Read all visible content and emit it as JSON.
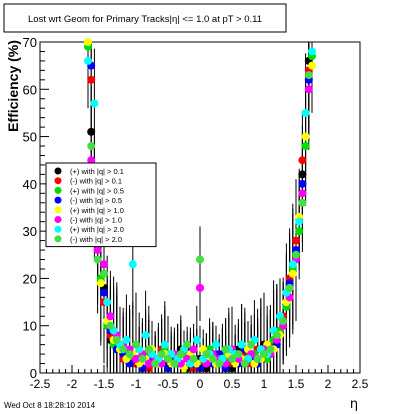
{
  "chart_data": {
    "type": "scatter",
    "title": "Lost wrt Geom for Primary Tracks|η| <= 1.0 at pT > 0.11",
    "xlabel": "η",
    "ylabel": "Efficiency (%)",
    "xlim": [
      -2.5,
      2.5
    ],
    "ylim": [
      0,
      70
    ],
    "x_ticks": [
      -2.5,
      -2,
      -1.5,
      -1,
      -0.5,
      0,
      0.5,
      1,
      1.5,
      2,
      2.5
    ],
    "y_ticks": [
      0,
      10,
      20,
      30,
      40,
      50,
      60,
      70
    ],
    "legend_position": "left",
    "series": [
      {
        "name": "(+) with |q| > 0.1",
        "color": "#000000",
        "x": [
          -1.7,
          -1.6,
          -1.5,
          -1.4,
          -1.3,
          -1.2,
          -1.1,
          -1.0,
          -0.9,
          -0.8,
          -0.7,
          -0.6,
          -0.5,
          -0.4,
          -0.3,
          -0.2,
          -0.1,
          0.0,
          0.1,
          0.2,
          0.3,
          0.4,
          0.5,
          0.6,
          0.7,
          0.8,
          0.9,
          1.0,
          1.1,
          1.2,
          1.3,
          1.4,
          1.5,
          1.6,
          1.7
        ],
        "y": [
          51,
          28,
          18,
          7,
          5,
          4,
          3,
          2,
          1,
          2,
          3,
          4,
          2,
          3,
          5,
          1,
          2,
          3,
          1,
          4,
          2,
          3,
          1,
          5,
          2,
          4,
          2,
          6,
          5,
          7,
          10,
          18,
          25,
          42,
          66
        ]
      },
      {
        "name": "(-) with |q| > 0.1",
        "color": "#ff0000",
        "x": [
          -1.7,
          -1.6,
          -1.5,
          -1.4,
          -1.3,
          -1.2,
          -1.1,
          -1.0,
          -0.9,
          -0.8,
          -0.7,
          -0.6,
          -0.5,
          -0.4,
          -0.3,
          -0.2,
          -0.1,
          0.0,
          0.1,
          0.2,
          0.3,
          0.4,
          0.5,
          0.6,
          0.7,
          0.8,
          0.9,
          1.0,
          1.1,
          1.2,
          1.3,
          1.4,
          1.5,
          1.6,
          1.7
        ],
        "y": [
          62,
          30,
          15,
          8,
          6,
          3,
          4,
          2,
          3,
          1,
          2,
          5,
          3,
          2,
          4,
          3,
          1,
          2,
          4,
          2,
          3,
          5,
          2,
          3,
          4,
          2,
          5,
          3,
          6,
          8,
          12,
          20,
          28,
          45,
          64
        ]
      },
      {
        "name": "(+) with |q| > 0.5",
        "color": "#00dd00",
        "x": [
          -1.75,
          -1.65,
          -1.55,
          -1.45,
          -1.35,
          -1.25,
          -1.15,
          -1.05,
          -0.95,
          -0.85,
          -0.75,
          -0.65,
          -0.55,
          -0.45,
          -0.35,
          -0.25,
          -0.15,
          -0.05,
          0.05,
          0.15,
          0.25,
          0.35,
          0.45,
          0.55,
          0.65,
          0.75,
          0.85,
          0.95,
          1.05,
          1.15,
          1.25,
          1.35,
          1.45,
          1.55,
          1.65,
          1.75
        ],
        "y": [
          69,
          40,
          20,
          10,
          6,
          5,
          4,
          3,
          2,
          4,
          3,
          2,
          5,
          3,
          2,
          4,
          3,
          2,
          3,
          5,
          2,
          4,
          3,
          2,
          6,
          3,
          4,
          5,
          3,
          7,
          9,
          14,
          22,
          30,
          48,
          67
        ]
      },
      {
        "name": "(-) with |q| > 0.5",
        "color": "#0000ff",
        "x": [
          -1.7,
          -1.6,
          -1.5,
          -1.4,
          -1.3,
          -1.2,
          -1.1,
          -1.0,
          -0.9,
          -0.8,
          -0.7,
          -0.6,
          -0.5,
          -0.4,
          -0.3,
          -0.2,
          -0.1,
          0.0,
          0.1,
          0.2,
          0.3,
          0.4,
          0.5,
          0.6,
          0.7,
          0.8,
          0.9,
          1.0,
          1.1,
          1.2,
          1.3,
          1.4,
          1.5,
          1.6,
          1.7
        ],
        "y": [
          65,
          32,
          17,
          9,
          5,
          4,
          2,
          3,
          1,
          3,
          2,
          4,
          1,
          3,
          2,
          5,
          2,
          1,
          3,
          2,
          4,
          1,
          3,
          2,
          5,
          3,
          2,
          4,
          5,
          6,
          11,
          19,
          26,
          40,
          62
        ]
      },
      {
        "name": "(+) with |q| > 1.0",
        "color": "#ffff00",
        "x": [
          -1.75,
          -1.65,
          -1.55,
          -1.45,
          -1.35,
          -1.25,
          -1.15,
          -1.05,
          -0.95,
          -0.85,
          -0.75,
          -0.65,
          -0.55,
          -0.45,
          -0.35,
          -0.25,
          -0.15,
          -0.05,
          0.05,
          0.15,
          0.25,
          0.35,
          0.45,
          0.55,
          0.65,
          0.75,
          0.85,
          0.95,
          1.05,
          1.15,
          1.25,
          1.35,
          1.45,
          1.55,
          1.65,
          1.75
        ],
        "y": [
          70,
          36,
          19,
          11,
          7,
          5,
          3,
          4,
          2,
          3,
          5,
          2,
          4,
          2,
          3,
          1,
          4,
          2,
          5,
          3,
          2,
          3,
          4,
          2,
          3,
          5,
          2,
          3,
          6,
          5,
          8,
          15,
          21,
          33,
          50,
          65
        ]
      },
      {
        "name": "(-) with |q| > 1.0",
        "color": "#ff00ff",
        "x": [
          -1.7,
          -1.6,
          -1.5,
          -1.4,
          -1.3,
          -1.2,
          -1.1,
          -1.0,
          -0.9,
          -0.8,
          -0.7,
          -0.6,
          -0.5,
          -0.4,
          -0.3,
          -0.2,
          -0.1,
          0.0,
          0.1,
          0.2,
          0.3,
          0.4,
          0.5,
          0.6,
          0.7,
          0.8,
          0.9,
          1.0,
          1.1,
          1.2,
          1.3,
          1.4,
          1.5,
          1.6,
          1.7
        ],
        "y": [
          45,
          26,
          23,
          12,
          8,
          6,
          5,
          3,
          4,
          2,
          3,
          2,
          3,
          4,
          2,
          3,
          5,
          18,
          2,
          4,
          3,
          2,
          5,
          3,
          2,
          4,
          3,
          5,
          4,
          7,
          10,
          16,
          24,
          38,
          60
        ]
      },
      {
        "name": "(+) with |q| > 2.0",
        "color": "#00ffff",
        "x": [
          -1.75,
          -1.65,
          -1.55,
          -1.45,
          -1.35,
          -1.25,
          -1.15,
          -1.05,
          -0.95,
          -0.85,
          -0.75,
          -0.65,
          -0.55,
          -0.45,
          -0.35,
          -0.25,
          -0.15,
          -0.05,
          0.05,
          0.15,
          0.25,
          0.35,
          0.45,
          0.55,
          0.65,
          0.75,
          0.85,
          0.95,
          1.05,
          1.15,
          1.25,
          1.35,
          1.45,
          1.55,
          1.65,
          1.75
        ],
        "y": [
          66,
          57,
          30,
          15,
          9,
          6,
          7,
          23,
          5,
          8,
          4,
          3,
          6,
          4,
          3,
          5,
          2,
          7,
          3,
          4,
          6,
          3,
          5,
          4,
          6,
          3,
          7,
          5,
          4,
          9,
          12,
          17,
          23,
          32,
          55,
          68
        ]
      },
      {
        "name": "(-) with |q| > 2.0",
        "color": "#44dd44",
        "x": [
          -1.7,
          -1.6,
          -1.5,
          -1.4,
          -1.3,
          -1.2,
          -1.1,
          -1.0,
          -0.9,
          -0.8,
          -0.7,
          -0.6,
          -0.5,
          -0.4,
          -0.3,
          -0.2,
          -0.1,
          0.0,
          0.1,
          0.2,
          0.3,
          0.4,
          0.5,
          0.6,
          0.7,
          0.8,
          0.9,
          1.0,
          1.1,
          1.2,
          1.3,
          1.4,
          1.5,
          1.6,
          1.7
        ],
        "y": [
          48,
          24,
          21,
          10,
          7,
          5,
          4,
          6,
          3,
          5,
          2,
          4,
          3,
          2,
          4,
          6,
          3,
          24,
          4,
          3,
          2,
          5,
          3,
          4,
          2,
          6,
          3,
          4,
          5,
          8,
          11,
          18,
          25,
          36,
          63
        ]
      }
    ]
  },
  "footer": {
    "timestamp": "Wed Oct  8 18:28:10 2014"
  }
}
